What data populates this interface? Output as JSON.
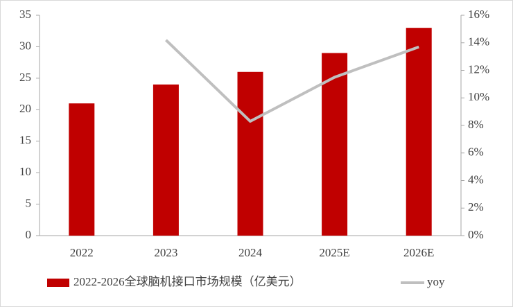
{
  "chart_data": {
    "type": "bar",
    "categories": [
      "2022",
      "2023",
      "2024",
      "2025E",
      "2026E"
    ],
    "series": [
      {
        "name": "2022-2026全球脑机接口市场规模（亿美元）",
        "type": "bar",
        "color": "#c00000",
        "values": [
          21,
          24,
          26,
          29,
          33
        ]
      },
      {
        "name": "yoy",
        "type": "line",
        "axis": "y2",
        "color": "#bfbfbf",
        "values": [
          null,
          14.2,
          8.3,
          11.5,
          13.7
        ]
      }
    ],
    "ylim": [
      0,
      35
    ],
    "yticks": [
      0,
      5,
      10,
      15,
      20,
      25,
      30,
      35
    ],
    "y2lim": [
      0,
      16
    ],
    "y2ticks": [
      {
        "value": 0,
        "label": "0%"
      },
      {
        "value": 2,
        "label": "2%"
      },
      {
        "value": 4,
        "label": "4%"
      },
      {
        "value": 6,
        "label": "6%"
      },
      {
        "value": 8,
        "label": "8%"
      },
      {
        "value": 10,
        "label": "10%"
      },
      {
        "value": 12,
        "label": "12%"
      },
      {
        "value": 14,
        "label": "14%"
      },
      {
        "value": 16,
        "label": "16%"
      }
    ],
    "grid": false,
    "legend": "bottom"
  }
}
